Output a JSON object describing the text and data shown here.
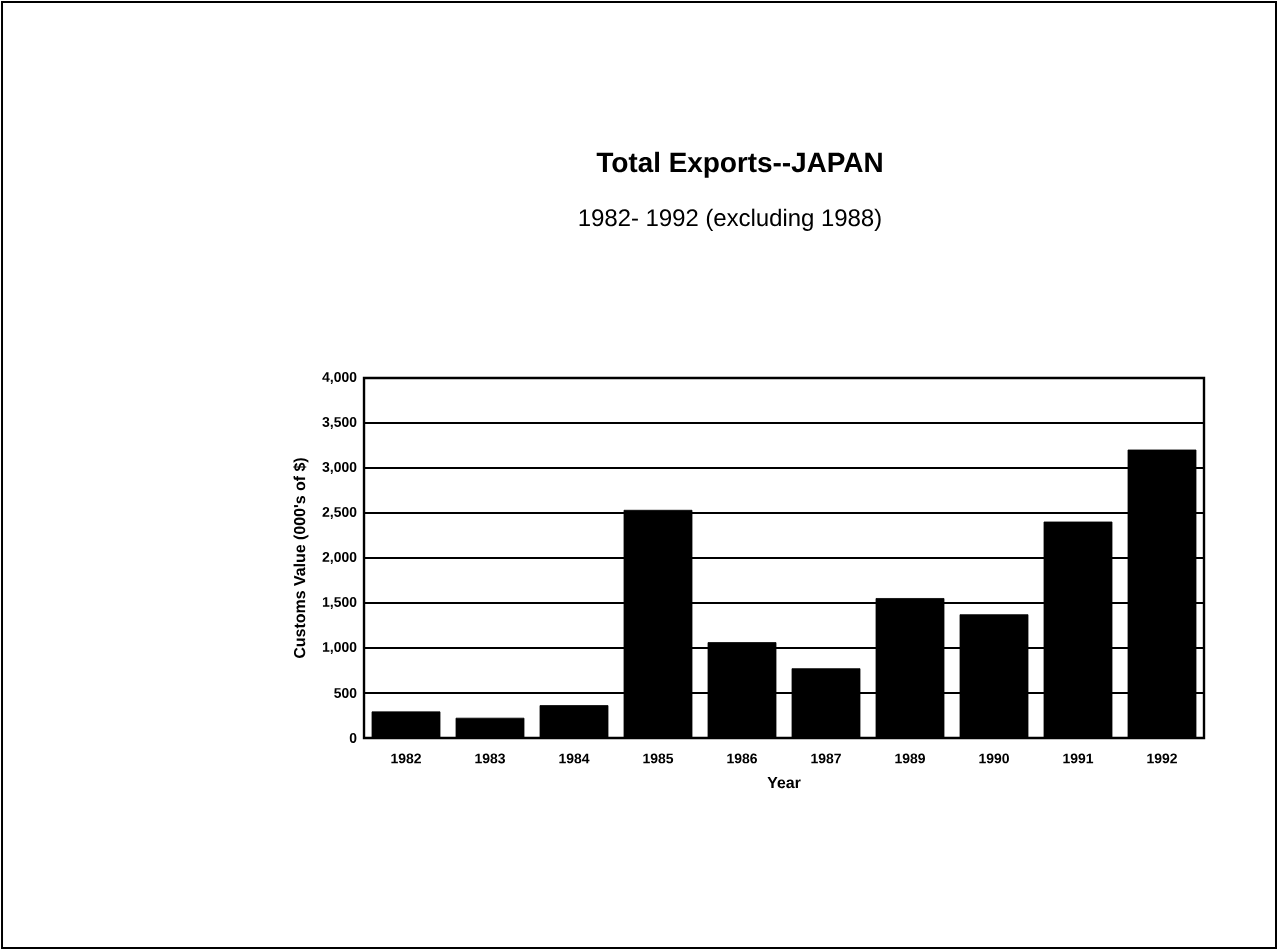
{
  "chart_data": {
    "type": "bar",
    "title": "Total Exports--JAPAN",
    "subtitle": "1982- 1992 (excluding 1988)",
    "xlabel": "Year",
    "ylabel": "Customs Value (000's of $)",
    "categories": [
      "1982",
      "1983",
      "1984",
      "1985",
      "1986",
      "1987",
      "1989",
      "1990",
      "1991",
      "1992"
    ],
    "values": [
      290,
      220,
      360,
      2530,
      1060,
      770,
      1550,
      1370,
      2400,
      3200
    ],
    "color": "#000000",
    "ylim": [
      0,
      4000
    ],
    "yticks": [
      0,
      500,
      {
        "value": 1000,
        "label": "1,000"
      },
      {
        "value": 1500,
        "label": "1,500"
      },
      {
        "value": 2000,
        "label": "2,000"
      },
      {
        "value": 2500,
        "label": "2,500"
      },
      {
        "value": 3000,
        "label": "3,000"
      },
      {
        "value": 3500,
        "label": "3,500"
      },
      {
        "value": 4000,
        "label": "4,000"
      }
    ],
    "grid": "y"
  }
}
